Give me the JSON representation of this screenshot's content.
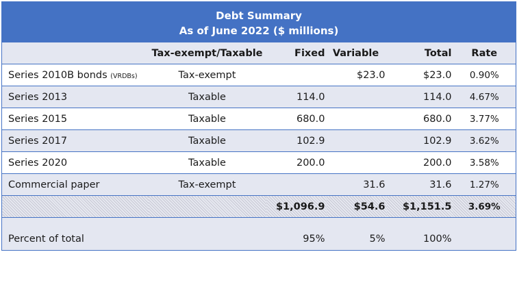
{
  "title": {
    "line1": "Debt Summary",
    "line2": "As of June 2022 ($ millions)"
  },
  "headers": {
    "name": "",
    "tax": "Tax-exempt/Taxable",
    "fixed": "Fixed",
    "variable": "Variable",
    "total": "Total",
    "rate": "Rate"
  },
  "rows": [
    {
      "name": "Series 2010B bonds",
      "tag": "(VRDBs)",
      "tax": "Tax-exempt",
      "fixed": "",
      "variable": "$23.0",
      "total": "$23.0",
      "rate": "0.90%"
    },
    {
      "name": "Series 2013",
      "tag": "",
      "tax": "Taxable",
      "fixed": "114.0",
      "variable": "",
      "total": "114.0",
      "rate": "4.67%"
    },
    {
      "name": "Series 2015",
      "tag": "",
      "tax": "Taxable",
      "fixed": "680.0",
      "variable": "",
      "total": "680.0",
      "rate": "3.77%"
    },
    {
      "name": "Series 2017",
      "tag": "",
      "tax": "Taxable",
      "fixed": "102.9",
      "variable": "",
      "total": "102.9",
      "rate": "3.62%"
    },
    {
      "name": "Series 2020",
      "tag": "",
      "tax": "Taxable",
      "fixed": "200.0",
      "variable": "",
      "total": "200.0",
      "rate": "3.58%"
    },
    {
      "name": "Commercial paper",
      "tag": "",
      "tax": "Tax-exempt",
      "fixed": "",
      "variable": "31.6",
      "total": "31.6",
      "rate": "1.27%"
    }
  ],
  "totals": {
    "fixed": "$1,096.9",
    "variable": "$54.6",
    "total": "$1,151.5",
    "rate": "3.69%"
  },
  "percent": {
    "label": "Percent of total",
    "fixed": "95%",
    "variable": "5%",
    "total": "100%"
  },
  "colors": {
    "header_blue": "#4472c4",
    "band": "#e4e7f1"
  }
}
